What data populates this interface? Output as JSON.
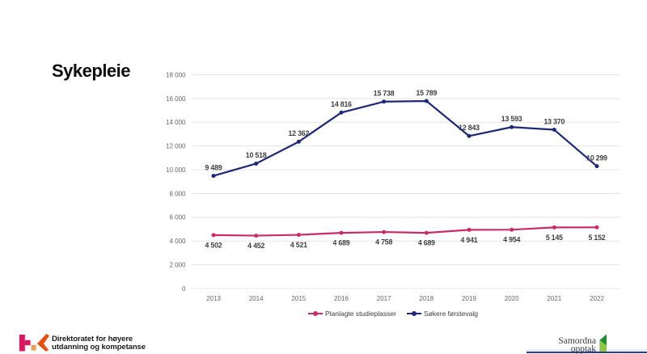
{
  "title": "Sykepleie",
  "chart_data": {
    "type": "line",
    "title": "",
    "categories": [
      "2013",
      "2014",
      "2015",
      "2016",
      "2017",
      "2018",
      "2019",
      "2020",
      "2021",
      "2022"
    ],
    "series": [
      {
        "name": "Planlagte studieplasser",
        "color": "#cb2a68",
        "values": [
          4502,
          4452,
          4521,
          4689,
          4758,
          4689,
          4941,
          4954,
          5145,
          5152
        ],
        "data_labels": "below"
      },
      {
        "name": "Søkere førstevalg",
        "color": "#1d2878",
        "values": [
          9489,
          10518,
          12362,
          14816,
          15738,
          15789,
          12843,
          13593,
          13370,
          10299
        ],
        "data_labels": "above"
      }
    ],
    "xlabel": "",
    "ylabel": "",
    "ylim": [
      0,
      18000
    ],
    "ytick_step": 2000,
    "grid": "horizontal",
    "gridline_color": "#e4e4e4",
    "axis_label_color": "#666666",
    "data_label_color": "#3f3f3f",
    "legend_position": "bottom"
  },
  "footer": {
    "hkdir": {
      "line1": "Direktoratet for høyere",
      "line2": "utdanning og kompetanse",
      "logo_colors": {
        "pink": "#d7195f",
        "orange": "#e8500f",
        "light_orange": "#f59b51"
      }
    },
    "samordna": {
      "line1": "Samordna",
      "line2": "opptak",
      "logo_colors": {
        "dark_green": "#179032",
        "light_green": "#8dc63f"
      }
    },
    "rule_color": "#2f3b8a"
  }
}
